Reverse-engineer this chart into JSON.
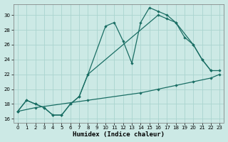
{
  "xlabel": "Humidex (Indice chaleur)",
  "bg_color": "#cce9e5",
  "grid_color": "#aad4cf",
  "line_color": "#1a6e64",
  "xlim": [
    -0.5,
    23.5
  ],
  "ylim": [
    15.5,
    31.5
  ],
  "xticks": [
    0,
    1,
    2,
    3,
    4,
    5,
    6,
    7,
    8,
    9,
    10,
    11,
    12,
    13,
    14,
    15,
    16,
    17,
    18,
    19,
    20,
    21,
    22,
    23
  ],
  "yticks": [
    16,
    18,
    20,
    22,
    24,
    26,
    28,
    30
  ],
  "series": [
    {
      "x": [
        0,
        1,
        2,
        3,
        4,
        5,
        6,
        7,
        8,
        10,
        11,
        12,
        13,
        14,
        15,
        16,
        17,
        18,
        20,
        21,
        22
      ],
      "y": [
        17,
        18.5,
        18,
        17.5,
        16.5,
        16.5,
        18,
        19,
        22,
        28.5,
        29,
        26.5,
        23.5,
        29,
        31,
        30.5,
        30,
        29,
        26,
        24,
        22.5
      ]
    },
    {
      "x": [
        0,
        1,
        2,
        3,
        4,
        5,
        6,
        7,
        8,
        16,
        17,
        18,
        19,
        20,
        21,
        22,
        23
      ],
      "y": [
        17,
        18.5,
        18,
        17.5,
        16.5,
        16.5,
        18,
        19,
        22,
        30,
        29.5,
        29,
        27,
        26,
        24,
        22.5,
        22.5
      ]
    },
    {
      "x": [
        0,
        2,
        8,
        14,
        16,
        18,
        20,
        22,
        23
      ],
      "y": [
        17,
        17.5,
        18.5,
        19.5,
        20,
        20.5,
        21,
        21.5,
        22
      ]
    }
  ]
}
